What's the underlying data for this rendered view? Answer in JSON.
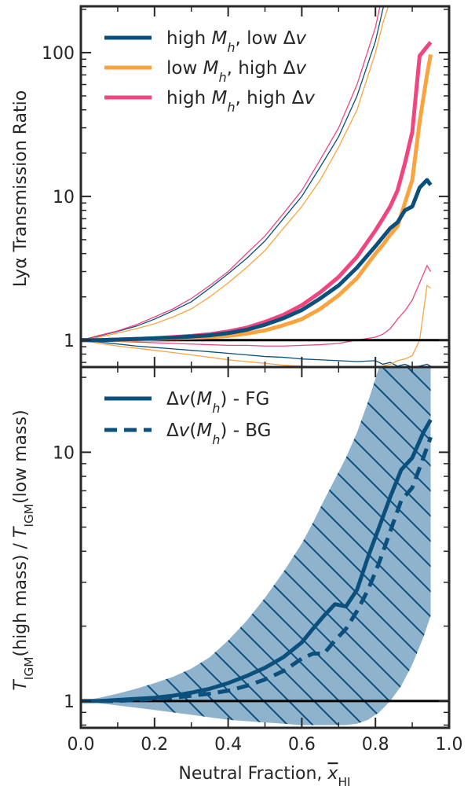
{
  "colors": {
    "navy": "#0b4f7d",
    "orange": "#f9a43f",
    "pink": "#f0467f",
    "band": "#8fb3cd",
    "black": "#000000"
  },
  "chart_data": [
    {
      "type": "line",
      "yscale": "log",
      "xlim": [
        0.0,
        1.0
      ],
      "ylim": [
        0.65,
        210
      ],
      "xticks": [
        0.0,
        0.2,
        0.4,
        0.6,
        0.8,
        1.0
      ],
      "xticklabels": [
        "",
        "",
        "",
        "",
        "",
        ""
      ],
      "yticks": [
        1,
        10,
        100
      ],
      "yticklabels": [
        "1",
        "10",
        "100"
      ],
      "ylabel": "Lyα Transmission Ratio",
      "reference_line": 1,
      "legend_position": "upper-left",
      "x": [
        0.0,
        0.05,
        0.1,
        0.15,
        0.2,
        0.25,
        0.3,
        0.35,
        0.4,
        0.45,
        0.5,
        0.55,
        0.6,
        0.65,
        0.7,
        0.75,
        0.8,
        0.82,
        0.84,
        0.86,
        0.88,
        0.9,
        0.92,
        0.94,
        0.95
      ],
      "series": [
        {
          "name": "high Mh, low Δv",
          "legend_parts": [
            "high ",
            "M",
            "h",
            ", low Δ",
            "v"
          ],
          "color": "navy",
          "median": [
            1.0,
            1.0,
            1.01,
            1.02,
            1.03,
            1.04,
            1.06,
            1.08,
            1.12,
            1.18,
            1.28,
            1.42,
            1.62,
            1.95,
            2.4,
            3.2,
            4.5,
            5.2,
            6.0,
            6.6,
            8.0,
            8.5,
            11.5,
            13,
            12.0
          ],
          "upper": [
            1.0,
            1.07,
            1.15,
            1.25,
            1.4,
            1.6,
            1.85,
            2.3,
            2.9,
            3.7,
            4.9,
            7.0,
            10.0,
            16.0,
            26.0,
            50.0,
            120,
            200,
            300,
            300,
            300,
            300,
            300,
            300,
            300
          ],
          "lower": [
            1.0,
            0.97,
            0.94,
            0.91,
            0.89,
            0.87,
            0.85,
            0.83,
            0.81,
            0.79,
            0.77,
            0.76,
            0.74,
            0.73,
            0.72,
            0.71,
            0.72,
            0.68,
            0.7,
            0.66,
            0.68,
            0.65,
            0.66,
            0.68,
            0.66
          ]
        },
        {
          "name": "low Mh, high Δv",
          "legend_parts": [
            "low ",
            "M",
            "h",
            ", high Δ",
            "v"
          ],
          "color": "orange",
          "median": [
            1.0,
            1.0,
            1.0,
            1.01,
            1.02,
            1.03,
            1.04,
            1.05,
            1.07,
            1.11,
            1.17,
            1.27,
            1.4,
            1.65,
            2.05,
            2.7,
            4.0,
            4.6,
            5.4,
            6.2,
            9.0,
            13.0,
            33.0,
            70.0,
            97.0
          ],
          "upper": [
            1.0,
            1.05,
            1.12,
            1.2,
            1.3,
            1.45,
            1.65,
            2.0,
            2.5,
            3.2,
            4.2,
            6.0,
            8.5,
            13.0,
            22.0,
            40.0,
            100,
            160,
            230,
            300,
            300,
            300,
            300,
            300,
            300
          ],
          "lower": [
            1.0,
            0.95,
            0.91,
            0.88,
            0.85,
            0.82,
            0.79,
            0.76,
            0.73,
            0.71,
            0.69,
            0.67,
            0.66,
            0.65,
            0.64,
            0.64,
            0.64,
            0.66,
            0.68,
            0.72,
            0.74,
            0.78,
            1.0,
            2.4,
            2.3
          ]
        },
        {
          "name": "high Mh, high Δv",
          "legend_parts": [
            "high ",
            "M",
            "h",
            ", high Δ",
            "v"
          ],
          "color": "pink",
          "median": [
            1.0,
            1.0,
            1.01,
            1.02,
            1.03,
            1.05,
            1.07,
            1.1,
            1.15,
            1.22,
            1.34,
            1.5,
            1.75,
            2.15,
            2.75,
            3.8,
            5.8,
            7.0,
            8.5,
            11.0,
            17.0,
            28.0,
            95.0,
            110.0,
            118.0
          ],
          "upper": [
            1.0,
            1.08,
            1.16,
            1.28,
            1.45,
            1.65,
            1.95,
            2.4,
            3.0,
            4.0,
            5.3,
            7.6,
            11.0,
            18.0,
            30.0,
            60.0,
            150,
            260,
            300,
            300,
            300,
            300,
            300,
            300,
            300
          ],
          "lower": [
            1.0,
            0.99,
            0.98,
            0.97,
            0.96,
            0.95,
            0.94,
            0.93,
            0.92,
            0.92,
            0.91,
            0.91,
            0.92,
            0.93,
            0.95,
            1.0,
            1.05,
            1.1,
            1.2,
            1.4,
            1.6,
            1.9,
            2.5,
            3.3,
            3.0
          ]
        }
      ]
    },
    {
      "type": "line",
      "yscale": "log",
      "xlim": [
        0.0,
        1.0
      ],
      "ylim": [
        0.78,
        22
      ],
      "xticks": [
        0.0,
        0.2,
        0.4,
        0.6,
        0.8,
        1.0
      ],
      "xticklabels": [
        "0.0",
        "0.2",
        "0.4",
        "0.6",
        "0.8",
        "1.0"
      ],
      "yticks": [
        1,
        10
      ],
      "yticklabels": [
        "1",
        "10"
      ],
      "xlabel": "Neutral Fraction, x̄HI",
      "xlabel_parts": [
        "Neutral Fraction, ",
        "x",
        "HI"
      ],
      "ylabel": "TIGM(high mass) / TIGM(low mass)",
      "ylabel_parts": [
        "T",
        "IGM",
        "(high mass) / ",
        "T",
        "IGM",
        "(low mass)"
      ],
      "reference_line": 1,
      "legend_position": "upper-left",
      "x": [
        0.0,
        0.05,
        0.1,
        0.15,
        0.2,
        0.25,
        0.3,
        0.35,
        0.4,
        0.45,
        0.5,
        0.55,
        0.6,
        0.63,
        0.66,
        0.69,
        0.72,
        0.75,
        0.78,
        0.81,
        0.84,
        0.87,
        0.9,
        0.93,
        0.95
      ],
      "band": {
        "upper": [
          1.0,
          1.03,
          1.07,
          1.12,
          1.18,
          1.25,
          1.35,
          1.5,
          1.75,
          2.1,
          2.6,
          3.3,
          4.3,
          5.2,
          6.4,
          7.8,
          9.5,
          12.0,
          16.0,
          22.0,
          22.0,
          22.0,
          22.0,
          22.0,
          22.0
        ],
        "lower": [
          1.0,
          0.98,
          0.96,
          0.94,
          0.92,
          0.9,
          0.88,
          0.86,
          0.84,
          0.83,
          0.82,
          0.81,
          0.8,
          0.8,
          0.8,
          0.8,
          0.8,
          0.81,
          0.84,
          0.9,
          1.0,
          1.15,
          1.4,
          1.8,
          2.2
        ],
        "hatch": true
      },
      "series": [
        {
          "name": "Δv(Mh) - FG",
          "legend_parts": [
            "Δ",
            "v",
            "(",
            "M",
            "h",
            ") - FG"
          ],
          "color": "navy",
          "style": "solid",
          "values": [
            1.0,
            1.0,
            1.01,
            1.02,
            1.03,
            1.05,
            1.08,
            1.12,
            1.18,
            1.26,
            1.36,
            1.5,
            1.72,
            1.95,
            2.2,
            2.45,
            2.4,
            2.8,
            3.8,
            5.0,
            6.6,
            8.5,
            9.5,
            12.0,
            13.5
          ]
        },
        {
          "name": "Δv(Mh) - BG",
          "legend_parts": [
            "Δ",
            "v",
            "(",
            "M",
            "h",
            ") - BG"
          ],
          "color": "navy",
          "style": "dashed",
          "values": [
            1.0,
            1.0,
            1.0,
            1.01,
            1.02,
            1.03,
            1.05,
            1.07,
            1.1,
            1.15,
            1.22,
            1.32,
            1.48,
            1.55,
            1.55,
            1.75,
            1.95,
            2.3,
            2.8,
            3.6,
            4.8,
            6.4,
            7.2,
            9.5,
            11.5
          ]
        }
      ]
    }
  ]
}
